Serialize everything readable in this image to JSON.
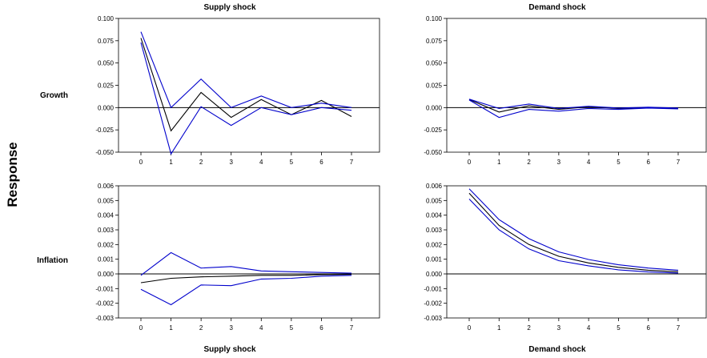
{
  "ylabel": "Response",
  "row_labels": [
    "Growth",
    "Inflation"
  ],
  "top_titles": [
    "Supply shock",
    "Demand shock"
  ],
  "bottom_titles": [
    "Supply shock",
    "Demand shock"
  ],
  "colors": {
    "irf": "#000000",
    "band": "#0000cc",
    "zero": "#000000"
  },
  "chart_data": [
    {
      "type": "line",
      "row": "Growth",
      "shock": "Supply shock",
      "x": [
        0,
        1,
        2,
        3,
        4,
        5,
        6,
        7
      ],
      "ylim": [
        -0.05,
        0.1
      ],
      "yticks": [
        "0.100",
        "0.075",
        "0.050",
        "0.025",
        "0.000",
        "-0.025",
        "-0.050"
      ],
      "series": [
        {
          "role": "irf",
          "values": [
            0.078,
            -0.026,
            0.017,
            -0.011,
            0.009,
            -0.008,
            0.008,
            -0.01
          ]
        },
        {
          "role": "upper",
          "values": [
            0.085,
            0.0,
            0.032,
            0.0,
            0.013,
            0.0,
            0.005,
            0.0
          ]
        },
        {
          "role": "lower",
          "values": [
            0.073,
            -0.052,
            0.001,
            -0.02,
            0.0,
            -0.008,
            0.0,
            -0.003
          ]
        }
      ]
    },
    {
      "type": "line",
      "row": "Growth",
      "shock": "Demand shock",
      "x": [
        0,
        1,
        2,
        3,
        4,
        5,
        6,
        7
      ],
      "ylim": [
        -0.05,
        0.1
      ],
      "yticks": [
        "0.100",
        "0.075",
        "0.050",
        "0.025",
        "0.000",
        "-0.025",
        "-0.050"
      ],
      "series": [
        {
          "role": "irf",
          "values": [
            0.009,
            -0.005,
            0.002,
            -0.002,
            0.001,
            -0.001,
            0.0,
            -0.001
          ]
        },
        {
          "role": "upper",
          "values": [
            0.0095,
            -0.001,
            0.004,
            -0.001,
            0.0015,
            -0.0005,
            0.0005,
            -0.0005
          ]
        },
        {
          "role": "lower",
          "values": [
            0.0085,
            -0.011,
            -0.002,
            -0.004,
            -0.001,
            -0.002,
            -0.0005,
            -0.0015
          ]
        }
      ]
    },
    {
      "type": "line",
      "row": "Inflation",
      "shock": "Supply shock",
      "x": [
        0,
        1,
        2,
        3,
        4,
        5,
        6,
        7
      ],
      "ylim": [
        -0.003,
        0.006
      ],
      "yticks": [
        "0.006",
        "0.005",
        "0.004",
        "0.003",
        "0.002",
        "0.001",
        "0.000",
        "-0.001",
        "-0.002",
        "-0.003"
      ],
      "series": [
        {
          "role": "irf",
          "values": [
            -0.0006,
            -0.0003,
            -0.0002,
            -0.00015,
            -0.0001,
            -0.0001,
            -5e-05,
            -3e-05
          ]
        },
        {
          "role": "upper",
          "values": [
            -0.0001,
            0.00145,
            0.0004,
            0.0005,
            0.0002,
            0.00015,
            0.0001,
            5e-05
          ]
        },
        {
          "role": "lower",
          "values": [
            -0.00105,
            -0.0021,
            -0.00075,
            -0.0008,
            -0.00035,
            -0.0003,
            -0.00015,
            -0.0001
          ]
        }
      ]
    },
    {
      "type": "line",
      "row": "Inflation",
      "shock": "Demand shock",
      "x": [
        0,
        1,
        2,
        3,
        4,
        5,
        6,
        7
      ],
      "ylim": [
        -0.003,
        0.006
      ],
      "yticks": [
        "0.006",
        "0.005",
        "0.004",
        "0.003",
        "0.002",
        "0.001",
        "0.000",
        "-0.001",
        "-0.002",
        "-0.003"
      ],
      "series": [
        {
          "role": "irf",
          "values": [
            0.0055,
            0.0033,
            0.002,
            0.0012,
            0.00075,
            0.00045,
            0.00025,
            0.00015
          ]
        },
        {
          "role": "upper",
          "values": [
            0.0058,
            0.0037,
            0.0024,
            0.0015,
            0.00098,
            0.00062,
            0.0004,
            0.00025
          ]
        },
        {
          "role": "lower",
          "values": [
            0.0051,
            0.003,
            0.0017,
            0.0009,
            0.00055,
            0.00028,
            0.00013,
            6e-05
          ]
        }
      ]
    }
  ]
}
